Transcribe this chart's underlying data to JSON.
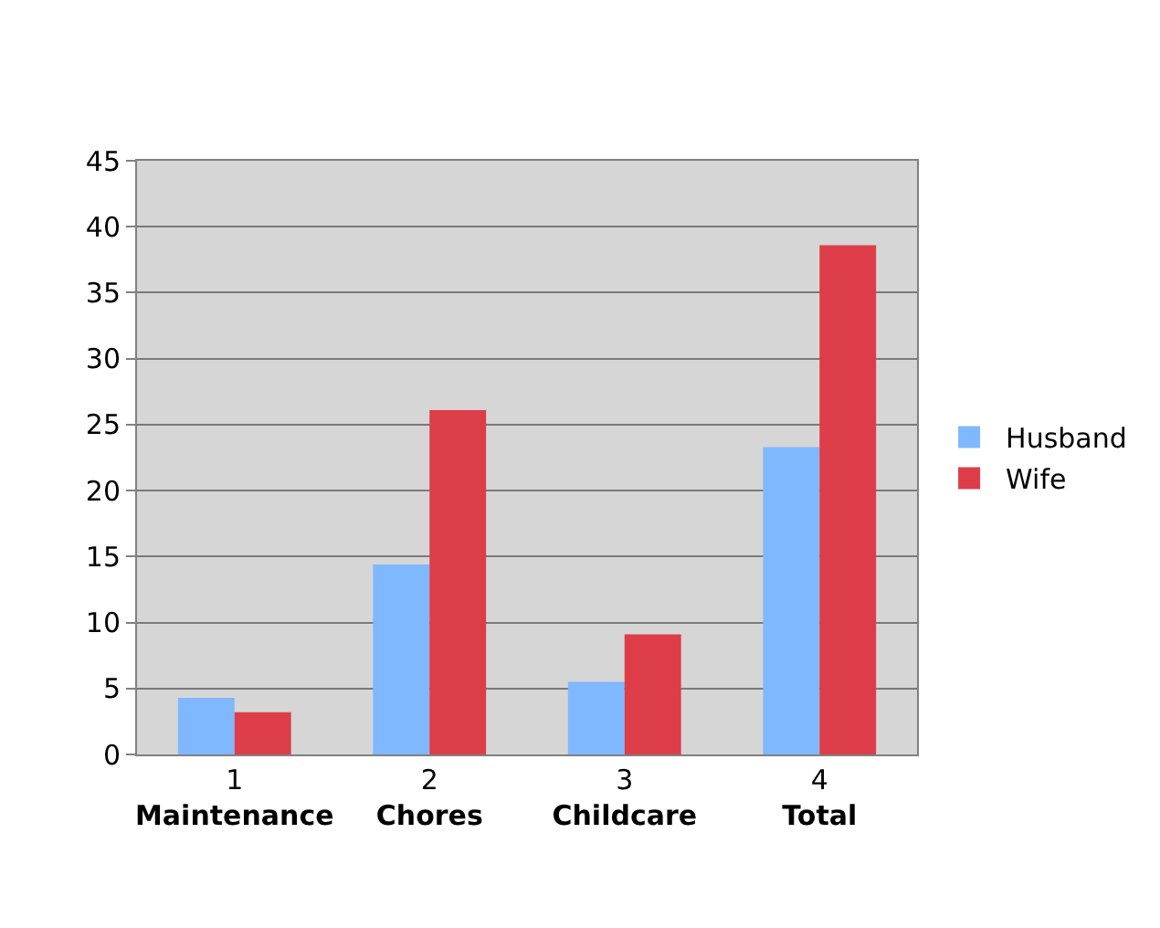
{
  "chart_data": {
    "type": "bar",
    "categories": [
      "1\nMaintenance",
      "2\nChores",
      "3\nChildcare",
      "4\nTotal"
    ],
    "series": [
      {
        "name": "Husband",
        "color": "#80b8ff",
        "values": [
          4.3,
          14.4,
          5.5,
          23.3
        ]
      },
      {
        "name": "Wife",
        "color": "#dd3d48",
        "values": [
          3.2,
          26.1,
          9.1,
          38.6
        ]
      }
    ],
    "ylim": [
      0,
      45
    ],
    "yticks": [
      0,
      5,
      10,
      15,
      20,
      25,
      30,
      35,
      40,
      45
    ],
    "grid": "y",
    "legend": "right"
  }
}
